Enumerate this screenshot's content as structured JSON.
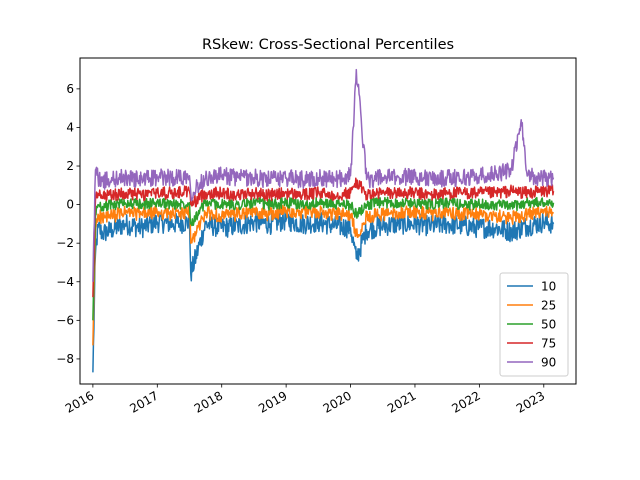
{
  "chart_data": {
    "type": "line",
    "title": "RSkew: Cross-Sectional Percentiles",
    "xlabel": "",
    "ylabel": "",
    "x_range": [
      2015.8,
      2023.5
    ],
    "ylim": [
      -9.3,
      7.6
    ],
    "x_ticks": [
      2016,
      2017,
      2018,
      2019,
      2020,
      2021,
      2022,
      2023
    ],
    "x_tick_labels": [
      "2016",
      "2017",
      "2018",
      "2019",
      "2020",
      "2021",
      "2022",
      "2023"
    ],
    "y_ticks": [
      -8,
      -6,
      -4,
      -2,
      0,
      2,
      4,
      6
    ],
    "y_tick_labels": [
      "−8",
      "−6",
      "−4",
      "−2",
      "0",
      "2",
      "4",
      "6"
    ],
    "grid": false,
    "legend_position": "lower-right",
    "series": [
      {
        "name": "10",
        "color": "#1f77b4",
        "x": [
          2016.0,
          2016.04,
          2016.08,
          2016.15,
          2016.3,
          2016.5,
          2016.75,
          2017.0,
          2017.25,
          2017.5,
          2017.52,
          2017.75,
          2018.0,
          2018.25,
          2018.5,
          2018.75,
          2019.0,
          2019.25,
          2019.5,
          2019.75,
          2020.0,
          2020.09,
          2020.25,
          2020.5,
          2020.75,
          2021.0,
          2021.25,
          2021.5,
          2021.75,
          2022.0,
          2022.25,
          2022.5,
          2022.75,
          2023.0,
          2023.15
        ],
        "y": [
          -8.7,
          -2.5,
          -1.2,
          -1.5,
          -1.3,
          -1.0,
          -1.2,
          -0.9,
          -1.0,
          -0.9,
          -3.6,
          -1.0,
          -1.2,
          -1.1,
          -0.9,
          -1.0,
          -0.8,
          -1.0,
          -0.9,
          -1.1,
          -1.2,
          -2.8,
          -1.3,
          -1.1,
          -1.0,
          -1.0,
          -1.1,
          -1.0,
          -1.1,
          -1.2,
          -1.2,
          -1.4,
          -1.1,
          -0.9,
          -1.0
        ]
      },
      {
        "name": "25",
        "color": "#ff7f0e",
        "x": [
          2016.0,
          2016.04,
          2016.08,
          2016.15,
          2016.3,
          2016.5,
          2016.75,
          2017.0,
          2017.25,
          2017.5,
          2017.52,
          2017.75,
          2018.0,
          2018.25,
          2018.5,
          2018.75,
          2019.0,
          2019.25,
          2019.5,
          2019.75,
          2020.0,
          2020.09,
          2020.25,
          2020.5,
          2020.75,
          2021.0,
          2021.25,
          2021.5,
          2021.75,
          2022.0,
          2022.25,
          2022.5,
          2022.75,
          2023.0,
          2023.15
        ],
        "y": [
          -7.3,
          -1.2,
          -0.5,
          -0.7,
          -0.6,
          -0.4,
          -0.5,
          -0.4,
          -0.5,
          -0.4,
          -2.0,
          -0.4,
          -0.6,
          -0.5,
          -0.4,
          -0.5,
          -0.3,
          -0.4,
          -0.4,
          -0.5,
          -0.5,
          -1.6,
          -0.6,
          -0.5,
          -0.4,
          -0.4,
          -0.5,
          -0.4,
          -0.5,
          -0.5,
          -0.6,
          -0.7,
          -0.5,
          -0.4,
          -0.4
        ]
      },
      {
        "name": "50",
        "color": "#2ca02c",
        "x": [
          2016.0,
          2016.04,
          2016.08,
          2016.15,
          2016.3,
          2016.5,
          2016.75,
          2017.0,
          2017.25,
          2017.5,
          2017.52,
          2017.75,
          2018.0,
          2018.25,
          2018.5,
          2018.75,
          2019.0,
          2019.25,
          2019.5,
          2019.75,
          2020.0,
          2020.09,
          2020.25,
          2020.5,
          2020.75,
          2021.0,
          2021.25,
          2021.5,
          2021.75,
          2022.0,
          2022.25,
          2022.5,
          2022.75,
          2023.0,
          2023.15
        ],
        "y": [
          -6.0,
          -0.5,
          0.0,
          -0.1,
          0.0,
          0.1,
          0.0,
          0.1,
          0.0,
          0.1,
          -1.0,
          0.1,
          0.0,
          0.0,
          0.1,
          0.0,
          0.1,
          0.0,
          0.1,
          0.0,
          0.0,
          -0.5,
          0.0,
          0.1,
          0.1,
          0.1,
          0.0,
          0.1,
          0.0,
          0.0,
          0.0,
          -0.1,
          0.1,
          0.1,
          0.1
        ]
      },
      {
        "name": "75",
        "color": "#d62728",
        "x": [
          2016.0,
          2016.04,
          2016.08,
          2016.15,
          2016.3,
          2016.5,
          2016.75,
          2017.0,
          2017.25,
          2017.5,
          2017.52,
          2017.75,
          2018.0,
          2018.25,
          2018.5,
          2018.75,
          2019.0,
          2019.25,
          2019.5,
          2019.75,
          2020.0,
          2020.09,
          2020.25,
          2020.5,
          2020.75,
          2021.0,
          2021.25,
          2021.5,
          2021.75,
          2022.0,
          2022.25,
          2022.5,
          2022.75,
          2023.0,
          2023.15
        ],
        "y": [
          -4.8,
          0.3,
          0.5,
          0.4,
          0.5,
          0.6,
          0.5,
          0.6,
          0.6,
          0.7,
          0.0,
          0.6,
          0.6,
          0.5,
          0.6,
          0.5,
          0.6,
          0.5,
          0.6,
          0.5,
          0.6,
          1.2,
          0.5,
          0.6,
          0.6,
          0.6,
          0.5,
          0.6,
          0.6,
          0.6,
          0.6,
          0.7,
          0.6,
          0.7,
          0.7
        ]
      },
      {
        "name": "90",
        "color": "#9467bd",
        "x": [
          2016.0,
          2016.04,
          2016.08,
          2016.15,
          2016.3,
          2016.5,
          2016.75,
          2017.0,
          2017.25,
          2017.5,
          2017.52,
          2017.75,
          2018.0,
          2018.25,
          2018.5,
          2018.75,
          2019.0,
          2019.25,
          2019.5,
          2019.75,
          2020.0,
          2020.09,
          2020.25,
          2020.5,
          2020.75,
          2021.0,
          2021.25,
          2021.5,
          2021.75,
          2022.0,
          2022.25,
          2022.5,
          2022.65,
          2022.75,
          2023.0,
          2023.15
        ],
        "y": [
          -4.0,
          1.8,
          1.4,
          1.2,
          1.3,
          1.4,
          1.3,
          1.4,
          1.4,
          1.5,
          0.6,
          1.4,
          1.5,
          1.4,
          1.4,
          1.3,
          1.4,
          1.3,
          1.4,
          1.3,
          1.5,
          7.0,
          1.3,
          1.4,
          1.4,
          1.5,
          1.3,
          1.4,
          1.4,
          1.5,
          1.6,
          1.8,
          4.4,
          1.5,
          1.4,
          1.4
        ]
      }
    ]
  }
}
